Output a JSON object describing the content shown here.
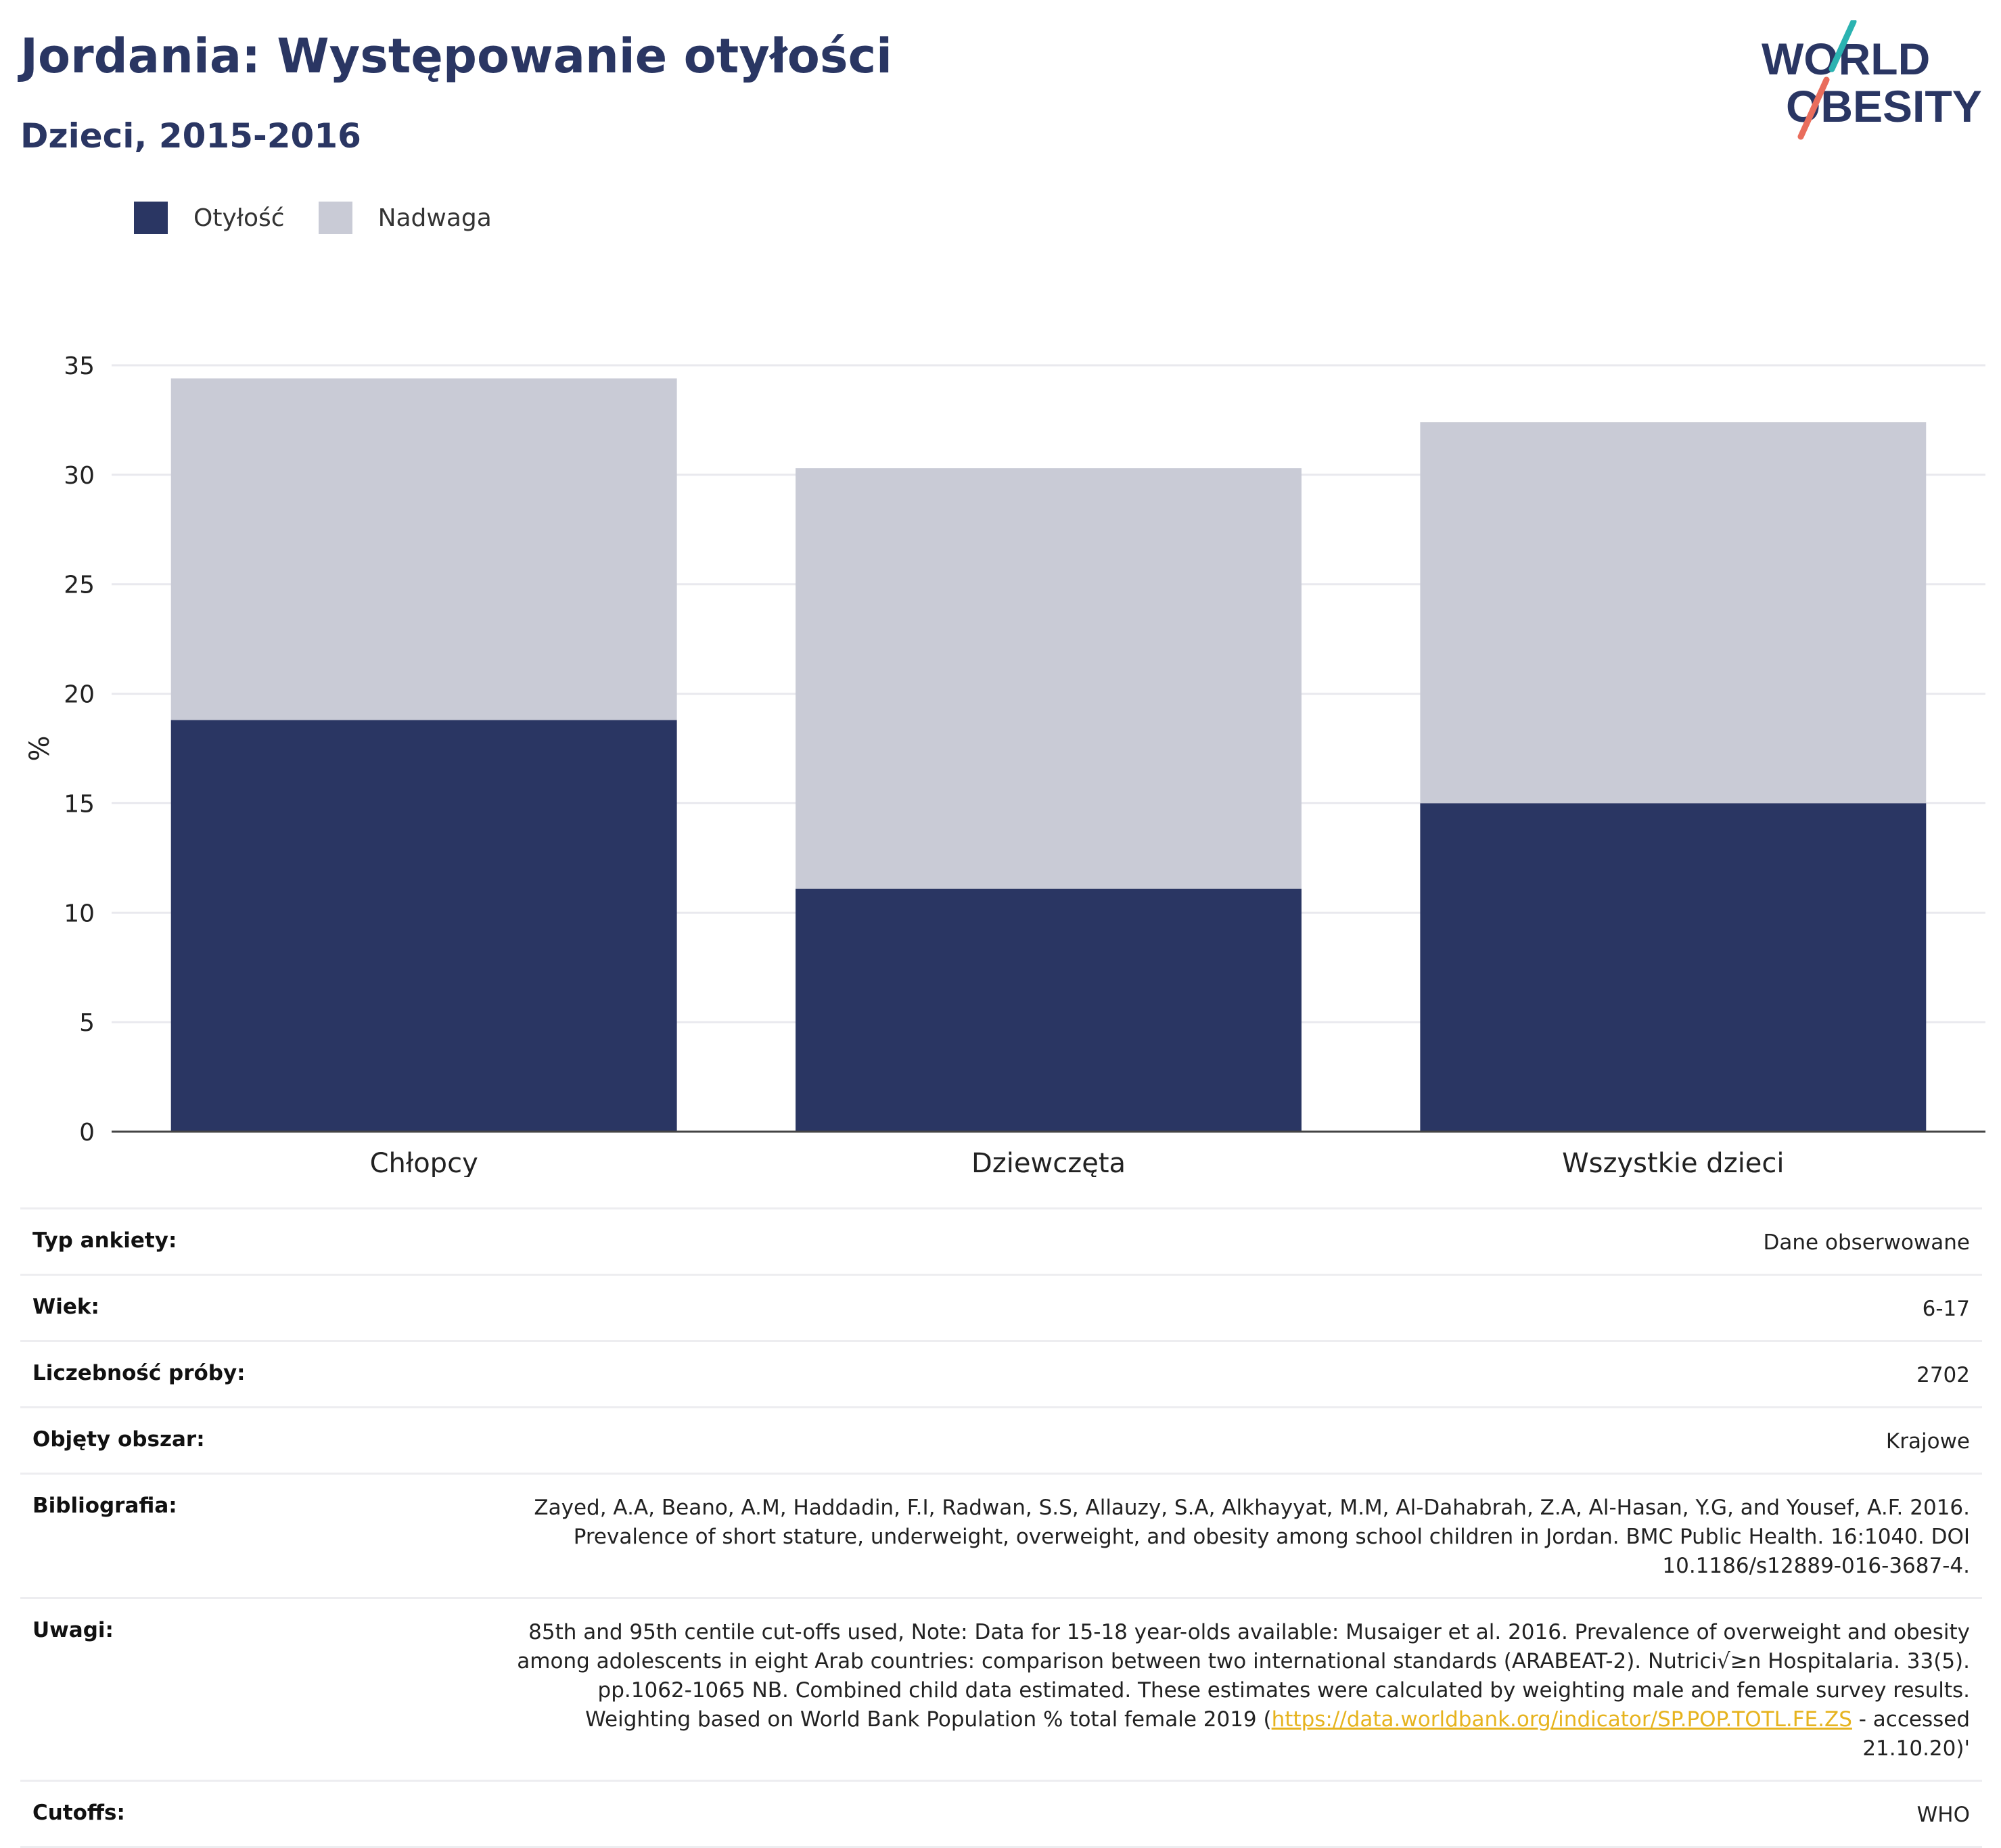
{
  "header": {
    "title": "Jordania: Występowanie otyłości",
    "subtitle": "Dzieci, 2015-2016"
  },
  "logo": {
    "line1": "WORLD",
    "line2": "OBESITY"
  },
  "legend": [
    {
      "label": "Otyłość",
      "color": "#2a3663"
    },
    {
      "label": "Nadwaga",
      "color": "#c9cbd6"
    }
  ],
  "chart_data": {
    "type": "bar",
    "stacked": true,
    "categories": [
      "Chłopcy",
      "Dziewczęta",
      "Wszystkie dzieci"
    ],
    "series": [
      {
        "name": "Otyłość",
        "values": [
          18.8,
          11.1,
          15.0
        ],
        "color": "#2a3663"
      },
      {
        "name": "Nadwaga",
        "values": [
          15.6,
          19.2,
          17.4
        ],
        "color": "#c9cbd6"
      }
    ],
    "ylabel": "%",
    "xlabel": "",
    "ylim": [
      0,
      35
    ],
    "yticks": [
      0,
      5,
      10,
      15,
      20,
      25,
      30,
      35
    ],
    "grid": true,
    "legend_position": "top-left"
  },
  "info": [
    {
      "label": "Typ ankiety:",
      "value": "Dane obserwowane"
    },
    {
      "label": "Wiek:",
      "value": "6-17"
    },
    {
      "label": "Liczebność próby:",
      "value": "2702"
    },
    {
      "label": "Objęty obszar:",
      "value": "Krajowe"
    },
    {
      "label": "Bibliografia:",
      "value": "Zayed, A.A, Beano, A.M, Haddadin, F.I, Radwan, S.S, Allauzy, S.A, Alkhayyat, M.M, Al-Dahabrah, Z.A, Al-Hasan, Y.G, and Yousef, A.F. 2016. Prevalence of short stature, underweight, overweight, and obesity among school children in Jordan. BMC Public Health. 16:1040. DOI 10.1186/s12889-016-3687-4."
    },
    {
      "label": "Uwagi:",
      "value": "85th and 95th centile cut-offs used, Note: Data for 15-18 year-olds available: Musaiger et al. 2016. Prevalence of overweight and obesity among adolescents in eight Arab countries: comparison between two international standards (ARABEAT-2). Nutrici√≥n Hospitalaria. 33(5). pp.1062-1065 NB. Combined child data estimated. These estimates were calculated by weighting male and female survey results. Weighting based on World Bank Population % total female 2019 (",
      "link": "https://data.worldbank.org/indicator/SP.POP.TOTL.FE.ZS",
      "suffix": " - accessed 21.10.20)'"
    },
    {
      "label": "Cutoffs:",
      "value": "WHO"
    }
  ]
}
